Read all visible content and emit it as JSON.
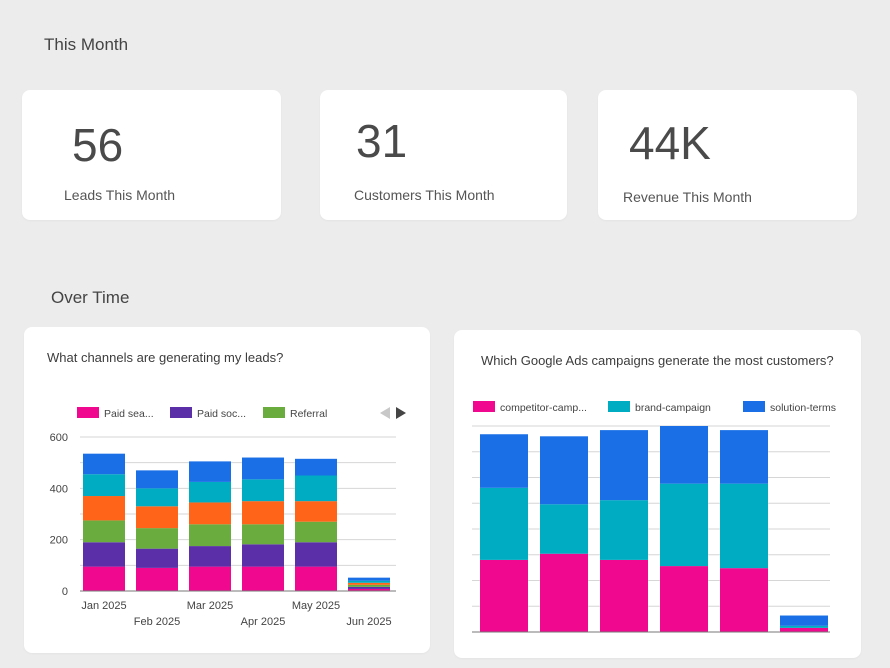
{
  "sections": {
    "this_month": "This Month",
    "over_time": "Over Time"
  },
  "kpis": [
    {
      "value": "56",
      "label": "Leads This Month"
    },
    {
      "value": "31",
      "label": "Customers This Month"
    },
    {
      "value": "44K",
      "label": "Revenue This Month"
    }
  ],
  "charts": {
    "leads": {
      "title": "What channels are generating my leads?"
    },
    "ads": {
      "title": "Which Google Ads campaigns generate the most customers?"
    }
  },
  "chart_data": [
    {
      "type": "bar",
      "stacked": true,
      "title": "What channels are generating my leads?",
      "categories": [
        "Jan 2025",
        "Feb 2025",
        "Mar 2025",
        "Apr 2025",
        "May 2025",
        "Jun 2025"
      ],
      "ylim": [
        0,
        600
      ],
      "yticks": [
        0,
        200,
        400,
        600
      ],
      "grid": true,
      "legend_position": "top-left",
      "legend_pager": true,
      "series": [
        {
          "name": "Paid sea...",
          "color": "#f0088f",
          "values": [
            95,
            90,
            95,
            95,
            95,
            8
          ]
        },
        {
          "name": "Paid soc...",
          "color": "#5a2fa8",
          "values": [
            95,
            75,
            80,
            87,
            95,
            8
          ]
        },
        {
          "name": "Referral",
          "color": "#6aac3e",
          "values": [
            85,
            80,
            85,
            78,
            80,
            8
          ]
        },
        {
          "values": [
            95,
            85,
            85,
            90,
            80,
            8
          ],
          "color": "#ff6418"
        },
        {
          "values": [
            85,
            70,
            80,
            85,
            100,
            8
          ],
          "color": "#00acc1"
        },
        {
          "values": [
            80,
            70,
            80,
            85,
            65,
            12
          ],
          "color": "#1a6fe6"
        }
      ]
    },
    {
      "type": "bar",
      "stacked": true,
      "title": "Which Google Ads campaigns generate the most customers?",
      "categories": [
        "",
        "",
        "",
        "",
        "",
        ""
      ],
      "ylim": [
        0,
        100
      ],
      "grid": true,
      "legend_position": "top-left",
      "series": [
        {
          "name": "competitor-camp...",
          "color": "#f0088f",
          "values": [
            35,
            38,
            35,
            32,
            31,
            2
          ]
        },
        {
          "name": "brand-campaign",
          "color": "#00acc1",
          "values": [
            35,
            24,
            29,
            40,
            41,
            1
          ]
        },
        {
          "name": "solution-terms",
          "color": "#1a6fe6",
          "values": [
            26,
            33,
            34,
            28,
            26,
            5
          ]
        }
      ]
    }
  ]
}
